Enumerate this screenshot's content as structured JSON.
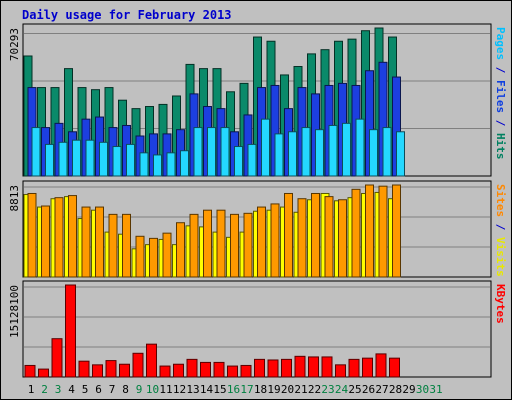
{
  "title": "Daily usage for February 2013",
  "colors": {
    "hits": "#0a8a6a",
    "files": "#1c3fe0",
    "pages": "#24d8ff",
    "visits": "#ffff00",
    "sites": "#ff9900",
    "kbytes": "#ff0000",
    "weekday_label": "#000000",
    "weekend_label": "#008040",
    "axis_label_blue": "#0000cc"
  },
  "chart_data": [
    {
      "type": "bar",
      "name": "hits-files-pages",
      "ymax_label": "70293",
      "ylim": [
        0,
        70293
      ],
      "right_label": [
        {
          "text": "Pages",
          "color": "#00c0ff"
        },
        {
          "text": " / ",
          "color": "#0000cc"
        },
        {
          "text": "Files",
          "color": "#1040e0"
        },
        {
          "text": " / ",
          "color": "#0000cc"
        },
        {
          "text": "Hits",
          "color": "#008060"
        }
      ],
      "series": [
        {
          "name": "Hits",
          "values": [
            57000,
            42000,
            42000,
            51000,
            42000,
            41000,
            42000,
            36000,
            32000,
            33000,
            34000,
            38000,
            53000,
            51000,
            51000,
            40000,
            44000,
            66000,
            64000,
            48000,
            52000,
            58000,
            60000,
            64000,
            65000,
            69000,
            70293,
            66000,
            0,
            0,
            0
          ]
        },
        {
          "name": "Files",
          "values": [
            42000,
            23000,
            25000,
            21000,
            27000,
            28000,
            23000,
            24000,
            19000,
            20000,
            20000,
            22000,
            39000,
            33000,
            32000,
            21000,
            29000,
            42000,
            43000,
            32000,
            42000,
            39000,
            43000,
            44000,
            43000,
            50000,
            54000,
            47000,
            0,
            0,
            0
          ]
        },
        {
          "name": "Pages",
          "values": [
            23000,
            15000,
            16000,
            17000,
            17000,
            16000,
            14000,
            15000,
            11000,
            10000,
            11000,
            12000,
            23000,
            23000,
            23000,
            14000,
            15000,
            27000,
            20000,
            21000,
            23000,
            22000,
            24000,
            25000,
            27000,
            22000,
            23000,
            21000,
            0,
            0,
            0
          ]
        }
      ]
    },
    {
      "type": "bar",
      "name": "visits-sites",
      "ymax_label": "8813",
      "ylim": [
        0,
        8813
      ],
      "right_label": [
        {
          "text": "Sites",
          "color": "#ff8800"
        },
        {
          "text": " / ",
          "color": "#0000cc"
        },
        {
          "text": "Visits",
          "color": "#e8e800"
        }
      ],
      "series": [
        {
          "name": "Visits",
          "values": [
            7900,
            6700,
            7500,
            7700,
            5600,
            6400,
            4300,
            4100,
            2700,
            3100,
            3600,
            3100,
            4900,
            4800,
            4300,
            3800,
            4300,
            6300,
            6400,
            6700,
            6200,
            7400,
            8000,
            7300,
            7600,
            8000,
            8100,
            7500,
            0,
            0,
            0
          ]
        },
        {
          "name": "Sites",
          "values": [
            8000,
            6800,
            7600,
            7800,
            6700,
            6700,
            6000,
            6000,
            3900,
            3700,
            4200,
            5200,
            6000,
            6400,
            6400,
            6000,
            6100,
            6700,
            7000,
            8000,
            7500,
            8000,
            7700,
            7400,
            8400,
            8813,
            8700,
            8813,
            0,
            0,
            0
          ]
        }
      ]
    },
    {
      "type": "bar",
      "name": "kbytes",
      "ymax_label": "15128100",
      "ylim": [
        0,
        15128100
      ],
      "right_label": [
        {
          "text": "KBytes",
          "color": "#ff0000"
        }
      ],
      "series": [
        {
          "name": "KBytes",
          "values": [
            1900000,
            1300000,
            6300000,
            15128100,
            2600000,
            2000000,
            2700000,
            2100000,
            3900000,
            5400000,
            1800000,
            2100000,
            2900000,
            2400000,
            2400000,
            1800000,
            1900000,
            2900000,
            2800000,
            2900000,
            3400000,
            3300000,
            3300000,
            2000000,
            2900000,
            3100000,
            3800000,
            3100000,
            0,
            0,
            0
          ]
        }
      ]
    }
  ],
  "x_days": [
    "1",
    "2",
    "3",
    "4",
    "5",
    "6",
    "7",
    "8",
    "9",
    "10",
    "11",
    "12",
    "13",
    "14",
    "15",
    "16",
    "17",
    "18",
    "19",
    "20",
    "21",
    "22",
    "23",
    "24",
    "25",
    "26",
    "27",
    "28",
    "29",
    "30",
    "31"
  ],
  "weekend_days": [
    "2",
    "3",
    "9",
    "10",
    "16",
    "17",
    "23",
    "24",
    "30",
    "31"
  ]
}
